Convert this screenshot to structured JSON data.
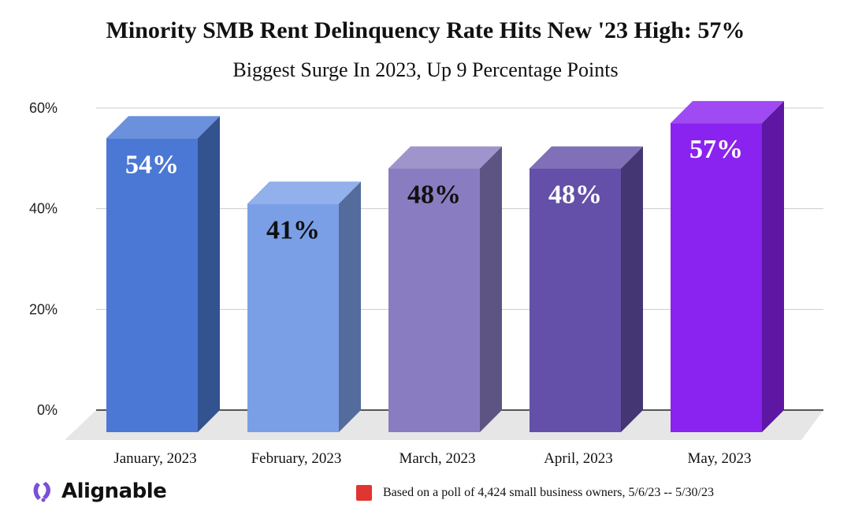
{
  "chart_data": {
    "type": "bar",
    "title": "Minority SMB Rent Delinquency Rate Hits New '23 High: 57%",
    "subtitle": "Biggest Surge In 2023, Up 9 Percentage Points",
    "categories": [
      "January, 2023",
      "February, 2023",
      "March, 2023",
      "April, 2023",
      "May, 2023"
    ],
    "values": [
      54,
      41,
      48,
      48,
      57
    ],
    "data_labels": [
      "54%",
      "41%",
      "48%",
      "48%",
      "57%"
    ],
    "bar_colors": [
      "#4a78d4",
      "#7a9fe6",
      "#8a7cc0",
      "#6450a8",
      "#8a22f0"
    ],
    "label_colors": [
      "#ffffff",
      "#111111",
      "#111111",
      "#ffffff",
      "#ffffff"
    ],
    "ylim": [
      0,
      60
    ],
    "yticks": [
      0,
      20,
      40,
      60
    ],
    "ytick_labels": [
      "0%",
      "20%",
      "40%",
      "60%"
    ],
    "xlabel": "",
    "ylabel": "",
    "grid": true,
    "note": "Based on a poll of 4,424 small business owners, 5/6/23 -- 5/30/23"
  },
  "brand": {
    "name": "Alignable"
  },
  "colors": {
    "note_swatch": "#e03530",
    "grid": "#cccccc",
    "floor": "#e6e6e6"
  }
}
